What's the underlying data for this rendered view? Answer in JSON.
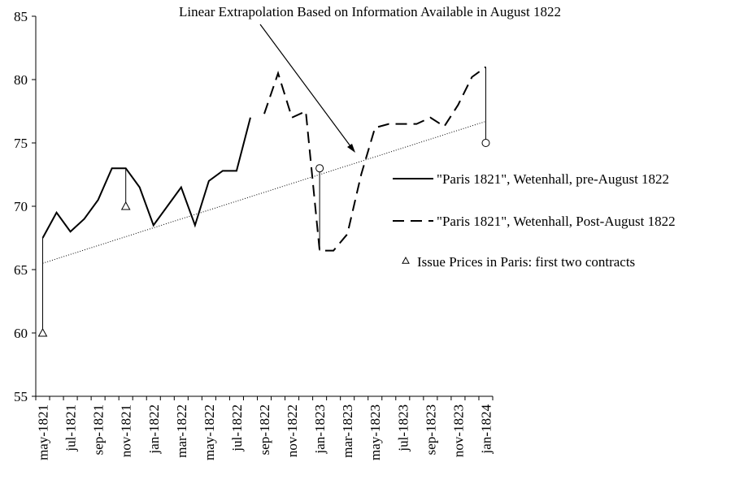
{
  "chart_data": {
    "type": "line",
    "annotation": "Linear Extrapolation Based on Information Available in August 1822",
    "categories": [
      "may-1821",
      null,
      "jul-1821",
      null,
      "sep-1821",
      null,
      "nov-1821",
      null,
      "jan-1822",
      null,
      "mar-1822",
      null,
      "may-1822",
      null,
      "jul-1822",
      null,
      "sep-1822",
      null,
      "nov-1822",
      null,
      "jan-1823",
      null,
      "mar-1823",
      null,
      "may-1823",
      null,
      "jul-1823",
      null,
      "sep-1823",
      null,
      "nov-1823",
      null,
      "jan-1824"
    ],
    "series": [
      {
        "name": "\"Paris 1821\", Wetenhall, pre-August 1822",
        "color": "#000000",
        "dash": "solid",
        "values": [
          67.5,
          69.5,
          68,
          69,
          70.5,
          73,
          73,
          71.5,
          68.5,
          70,
          71.5,
          68.5,
          72,
          72.8,
          72.8,
          77,
          null,
          null,
          null,
          null,
          null,
          null,
          null,
          null,
          null,
          null,
          null,
          null,
          null,
          null,
          null,
          null,
          null
        ]
      },
      {
        "name": "\"Paris 1821\", Wetenhall, Post-August 1822",
        "color": "#000000",
        "dash": "dashed",
        "values": [
          null,
          null,
          null,
          null,
          null,
          null,
          null,
          null,
          null,
          null,
          null,
          null,
          null,
          null,
          null,
          null,
          77.3,
          80.5,
          77,
          77.5,
          66.5,
          66.5,
          67.8,
          72.5,
          76.2,
          76.5,
          76.5,
          76.5,
          77,
          76.3,
          78,
          80.2,
          81
        ]
      },
      {
        "name": "Issue Prices in Paris: first two contracts",
        "color": "#000000",
        "marker": "triangle",
        "values": [
          60,
          null,
          null,
          null,
          null,
          null,
          70,
          null,
          null,
          null,
          null,
          null,
          null,
          null,
          null,
          null,
          null,
          null,
          null,
          null,
          null,
          null,
          null,
          null,
          null,
          null,
          null,
          null,
          null,
          null,
          null,
          null,
          null
        ]
      }
    ],
    "circle_values": [
      null,
      null,
      null,
      null,
      null,
      null,
      null,
      null,
      null,
      null,
      null,
      null,
      null,
      null,
      null,
      null,
      null,
      null,
      null,
      null,
      73,
      null,
      null,
      null,
      null,
      null,
      null,
      null,
      null,
      null,
      null,
      null,
      75
    ],
    "trend_values": [
      65.5,
      76.7
    ],
    "ylim": [
      55,
      85
    ],
    "yticks": [
      55,
      60,
      65,
      70,
      75,
      80,
      85
    ]
  }
}
